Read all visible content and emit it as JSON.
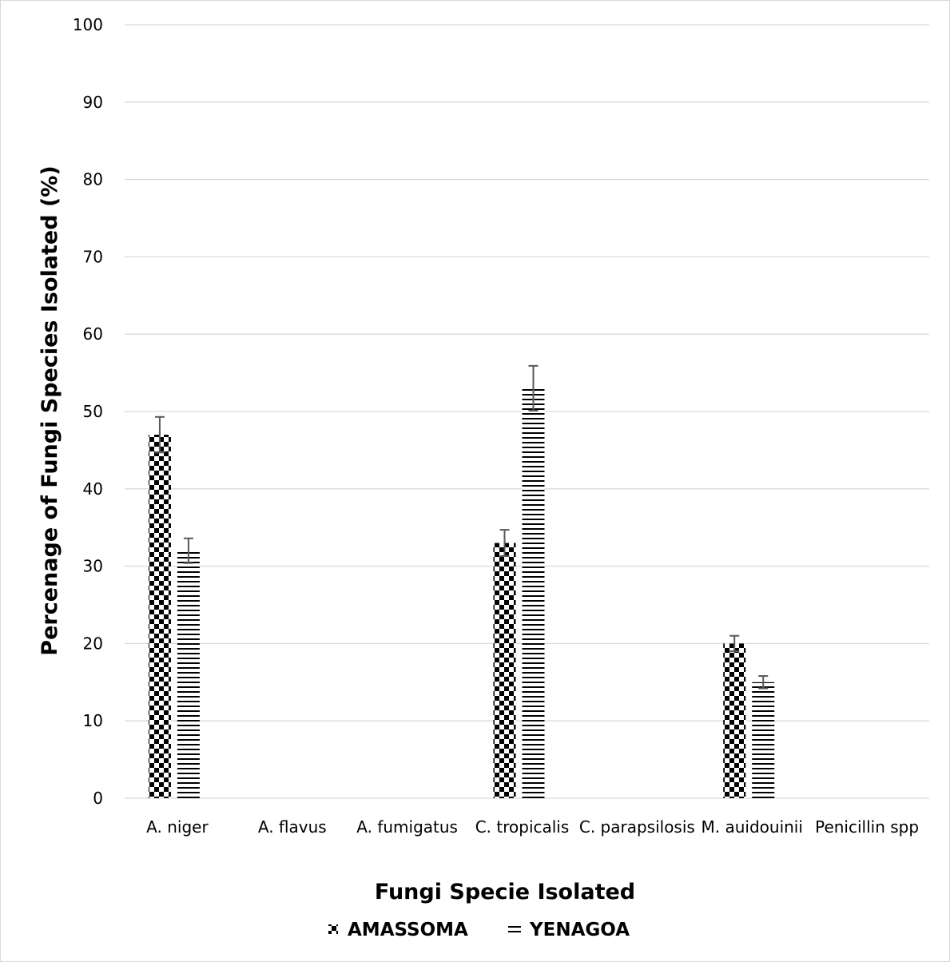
{
  "chart_data": {
    "type": "bar",
    "title": "",
    "xlabel": "Fungi Specie Isolated",
    "ylabel": "Percenage of Fungi Species Isolated (%)",
    "ylim": [
      0,
      100
    ],
    "yticks": [
      0,
      10,
      20,
      30,
      40,
      50,
      60,
      70,
      80,
      90,
      100
    ],
    "grid": true,
    "legend_position": "bottom",
    "categories": [
      "A. niger",
      "A. flavus",
      "A. fumigatus",
      "C. tropicalis",
      "C. parapsilosis",
      "M. auidouinii",
      "Penicillin spp"
    ],
    "series": [
      {
        "name": "AMASSOMA",
        "pattern": "checkerboard",
        "color": "#000000",
        "values": [
          47,
          0,
          0,
          33,
          0,
          20,
          0
        ],
        "error": [
          2.3,
          0,
          0,
          1.7,
          0,
          1,
          0
        ]
      },
      {
        "name": "YENAGOA",
        "pattern": "horizontal-lines",
        "color": "#000000",
        "values": [
          32,
          0,
          0,
          53,
          0,
          15,
          0
        ],
        "error": [
          1.6,
          0,
          0,
          2.9,
          0,
          0.8,
          0
        ]
      }
    ]
  },
  "colors": {
    "gridline": "#d9d9d9",
    "error_bar": "#595959",
    "bar_pattern": "#000000"
  }
}
